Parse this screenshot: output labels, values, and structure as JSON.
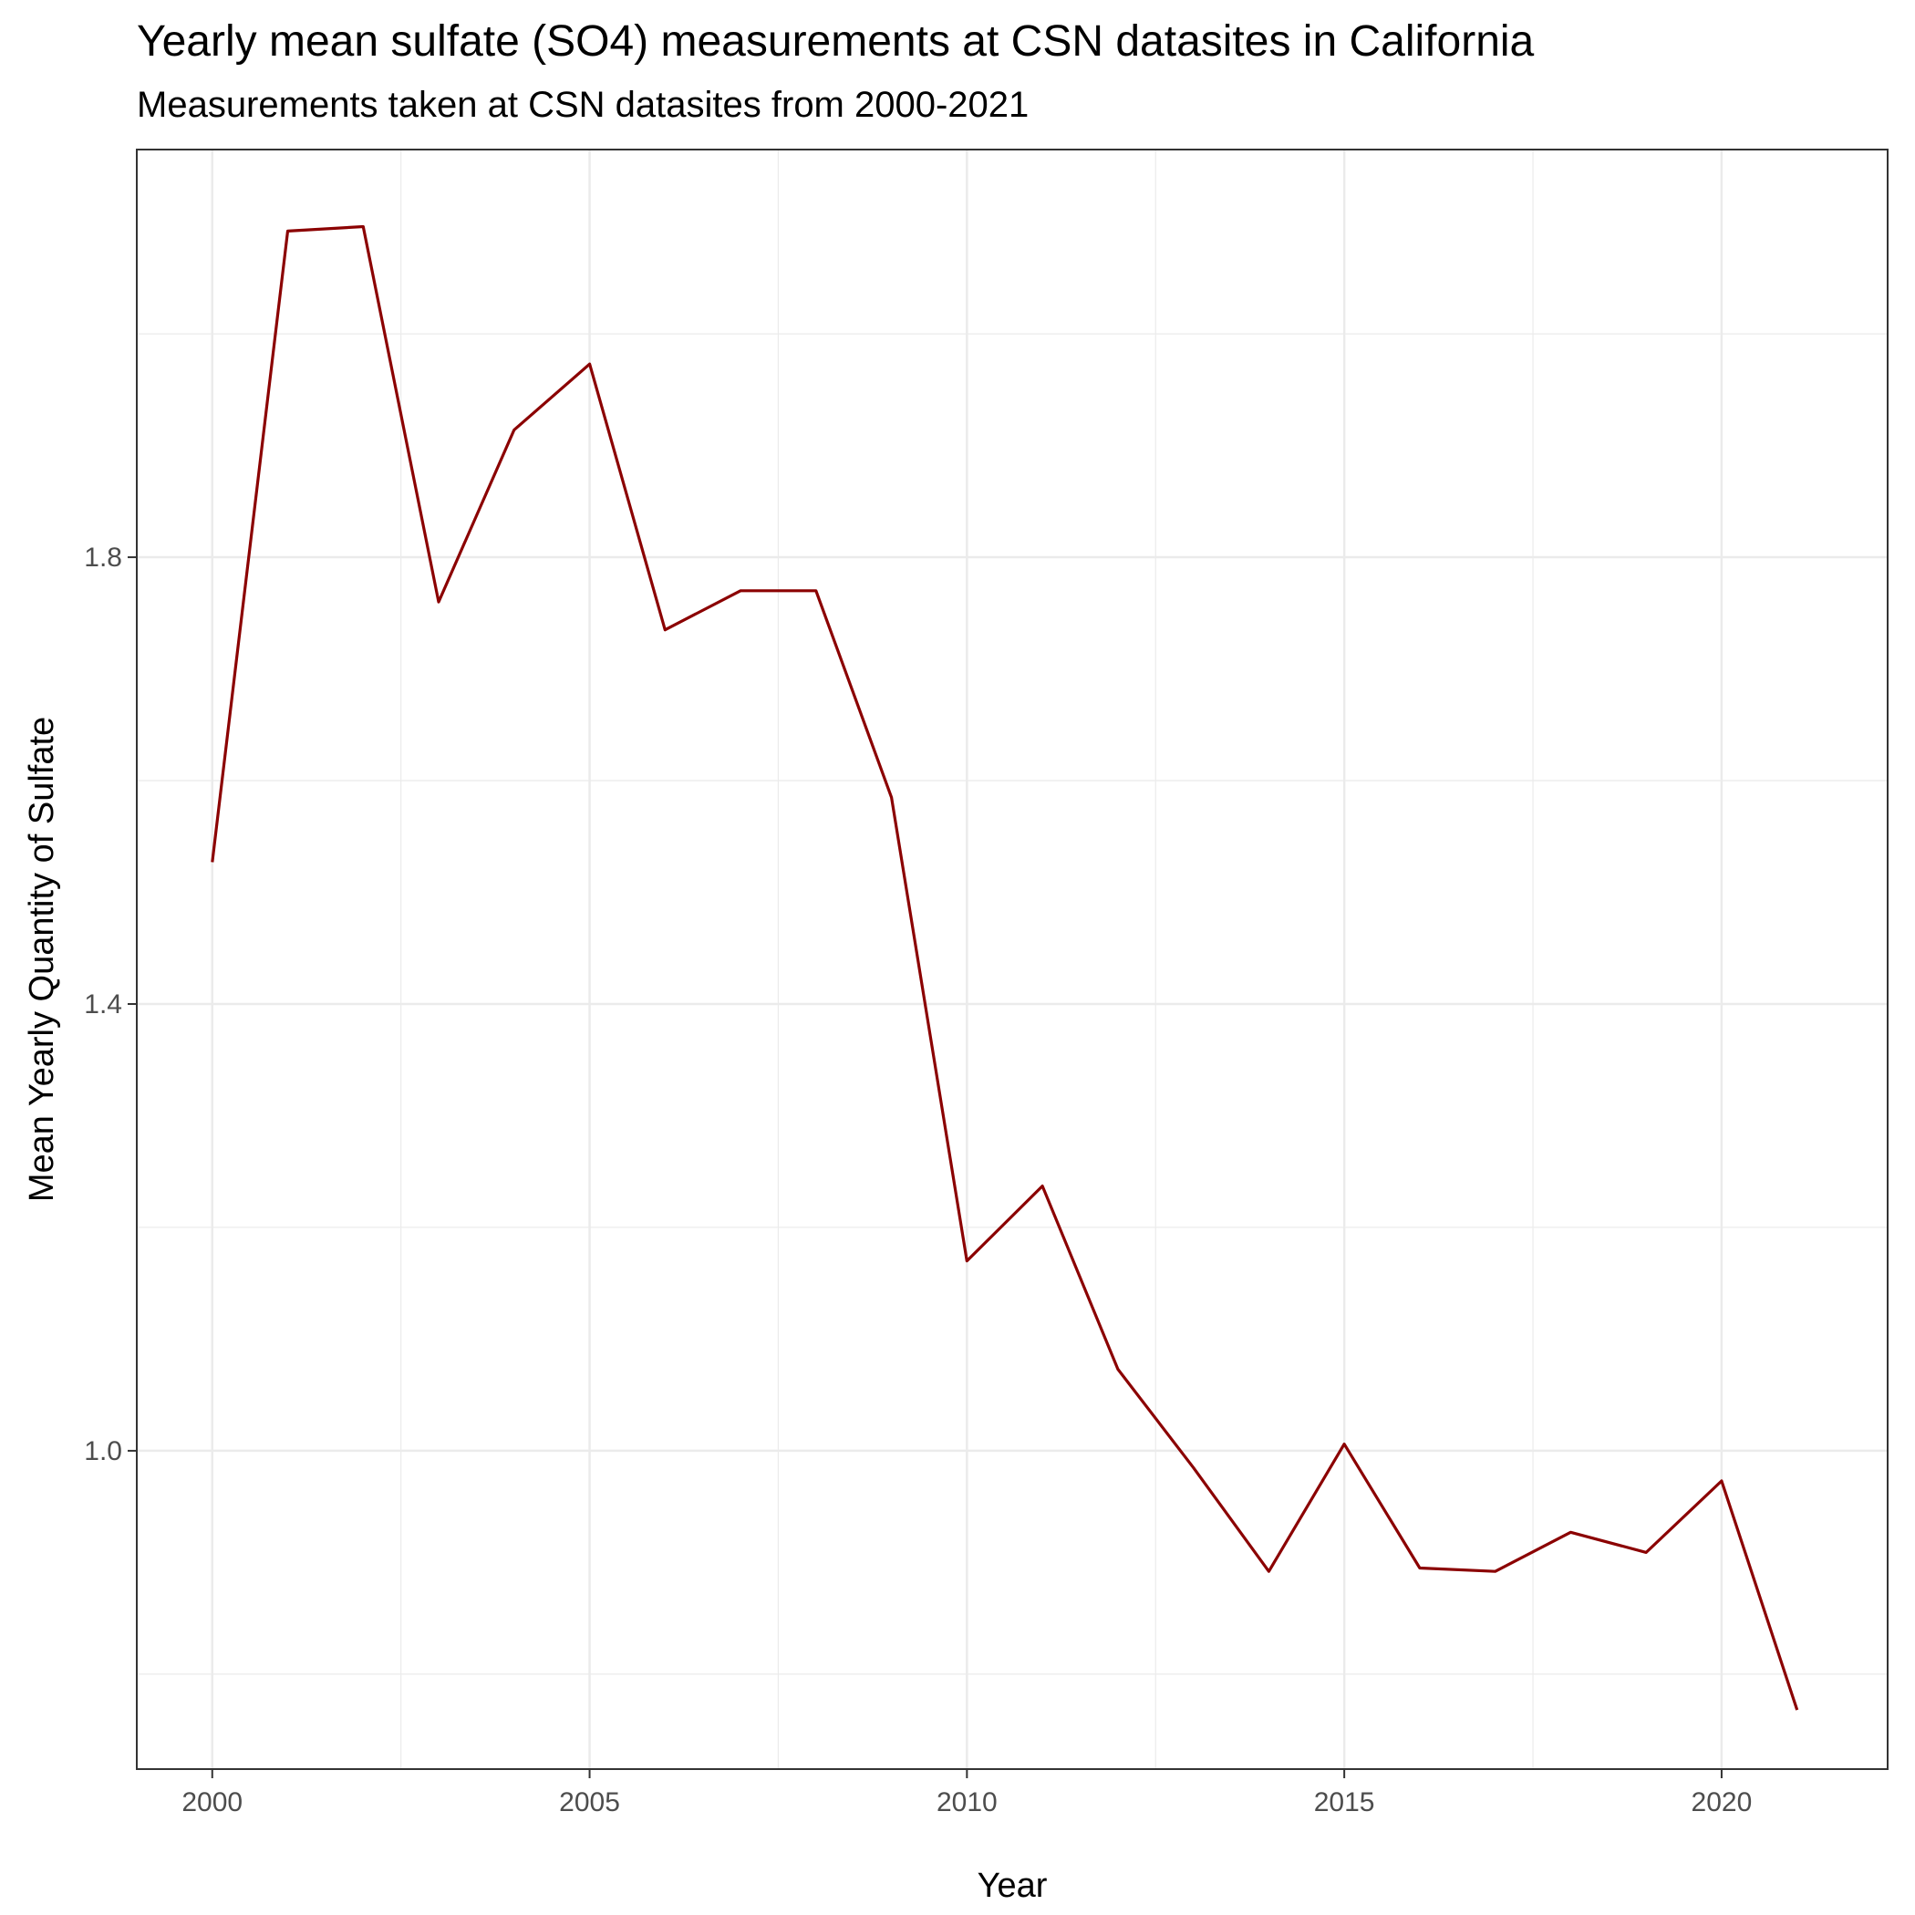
{
  "chart_data": {
    "type": "line",
    "title": "Yearly mean sulfate (SO4) measurements at CSN datasites in California",
    "subtitle": "Measurements taken at CSN datasites from 2000-2021",
    "xlabel": "Year",
    "ylabel": "Mean Yearly Quantity of Sulfate",
    "xlim": [
      1999,
      2022.2
    ],
    "ylim": [
      0.715,
      2.165
    ],
    "x_ticks": [
      2000,
      2005,
      2010,
      2015,
      2020
    ],
    "y_ticks": [
      1.0,
      1.4,
      1.8
    ],
    "x_tick_labels": [
      "2000",
      "2005",
      "2010",
      "2015",
      "2020"
    ],
    "y_tick_labels": [
      "1.0",
      "1.4",
      "1.8"
    ],
    "grid": true,
    "line_color": "#8B0000",
    "series": [
      {
        "x": [
          2000,
          2001,
          2002,
          2003,
          2004,
          2005,
          2006,
          2007,
          2008,
          2009,
          2010,
          2011,
          2012,
          2013,
          2014,
          2015,
          2016,
          2017,
          2018,
          2019,
          2020,
          2021
        ],
        "values": [
          1.527,
          2.092,
          2.096,
          1.76,
          1.914,
          1.973,
          1.735,
          1.77,
          1.77,
          1.585,
          1.17,
          1.237,
          1.073,
          0.985,
          0.892,
          1.006,
          0.895,
          0.892,
          0.927,
          0.909,
          0.973,
          0.768
        ]
      }
    ]
  }
}
